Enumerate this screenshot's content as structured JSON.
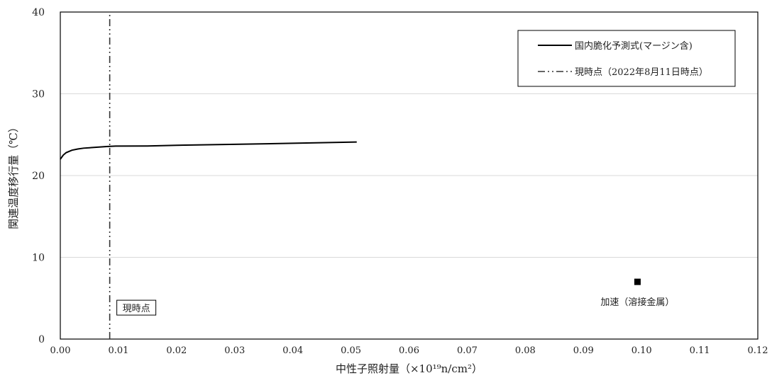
{
  "chart_data": {
    "type": "line",
    "xlabel": "中性子照射量（×10¹⁹n/cm²）",
    "ylabel": "関連温度移行量（℃）",
    "xlim": [
      0,
      0.12
    ],
    "ylim": [
      0,
      40
    ],
    "x_ticks": [
      0,
      0.01,
      0.02,
      0.03,
      0.04,
      0.05,
      0.06,
      0.07,
      0.08,
      0.09,
      0.1,
      0.11,
      0.12
    ],
    "x_tick_labels": [
      "0.00",
      "0.01",
      "0.02",
      "0.03",
      "0.04",
      "0.05",
      "0.06",
      "0.07",
      "0.08",
      "0.09",
      "0.10",
      "0.11",
      "0.12"
    ],
    "y_ticks": [
      0,
      10,
      20,
      30,
      40
    ],
    "y_tick_labels": [
      "0",
      "10",
      "20",
      "30",
      "40"
    ],
    "grid": "horizontal",
    "legend_position": "top-right",
    "series": [
      {
        "name": "国内脆化予測式(マージン含)",
        "style": "solid",
        "color": "#000000",
        "x": [
          0.0,
          0.0005,
          0.001,
          0.002,
          0.003,
          0.004,
          0.006,
          0.008,
          0.0095,
          0.015,
          0.02,
          0.03,
          0.04,
          0.051
        ],
        "y": [
          22.0,
          22.5,
          22.8,
          23.1,
          23.25,
          23.35,
          23.45,
          23.55,
          23.6,
          23.62,
          23.7,
          23.82,
          23.95,
          24.1
        ]
      },
      {
        "name": "現時点（2022年8月11日時点）",
        "style": "dash-dot-dot",
        "color": "#333333",
        "x": [
          0.0085,
          0.0085
        ],
        "y": [
          0,
          40
        ]
      }
    ],
    "points": [
      {
        "label": "加速（溶接金属）",
        "x": 0.0993,
        "y": 7.0,
        "marker": "square"
      }
    ],
    "annotations": [
      {
        "text": "現時点",
        "x": 0.0085,
        "y": 3.8,
        "boxed": true
      }
    ]
  }
}
